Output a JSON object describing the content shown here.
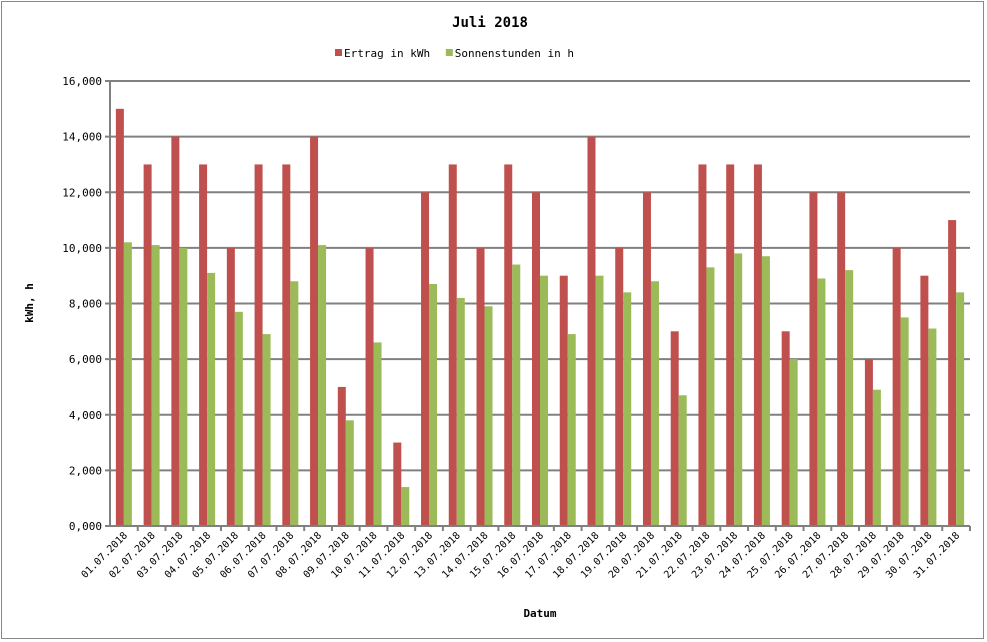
{
  "chart_data": {
    "type": "bar",
    "title": "Juli 2018",
    "xlabel": "Datum",
    "ylabel": "kWh, h",
    "ylim": [
      0,
      16
    ],
    "ytick_step": 2,
    "ytick_format": "comma-3-decimals",
    "grid": true,
    "legend": "top",
    "categories": [
      "01.07.2018",
      "02.07.2018",
      "03.07.2018",
      "04.07.2018",
      "05.07.2018",
      "06.07.2018",
      "07.07.2018",
      "08.07.2018",
      "09.07.2018",
      "10.07.2018",
      "11.07.2018",
      "12.07.2018",
      "13.07.2018",
      "14.07.2018",
      "15.07.2018",
      "16.07.2018",
      "17.07.2018",
      "18.07.2018",
      "19.07.2018",
      "20.07.2018",
      "21.07.2018",
      "22.07.2018",
      "23.07.2018",
      "24.07.2018",
      "25.07.2018",
      "26.07.2018",
      "27.07.2018",
      "28.07.2018",
      "29.07.2018",
      "30.07.2018",
      "31.07.2018"
    ],
    "series": [
      {
        "name": "Ertrag in kWh",
        "color": "#c0504d",
        "values": [
          15,
          13,
          14,
          13,
          10,
          13,
          13,
          14,
          5,
          10,
          3,
          12,
          13,
          10,
          13,
          12,
          9,
          14,
          10,
          12,
          7,
          13,
          13,
          13,
          7,
          12,
          12,
          6,
          10,
          9,
          11
        ]
      },
      {
        "name": "Sonnenstunden in h",
        "color": "#9bbb59",
        "values": [
          10.2,
          10.1,
          10.0,
          9.1,
          7.7,
          6.9,
          8.8,
          10.1,
          3.8,
          6.6,
          1.4,
          8.7,
          8.2,
          7.9,
          9.4,
          9.0,
          6.9,
          9.0,
          8.4,
          8.8,
          4.7,
          9.3,
          9.8,
          9.7,
          6.0,
          8.9,
          9.2,
          4.9,
          7.5,
          7.1,
          8.4
        ]
      }
    ]
  }
}
